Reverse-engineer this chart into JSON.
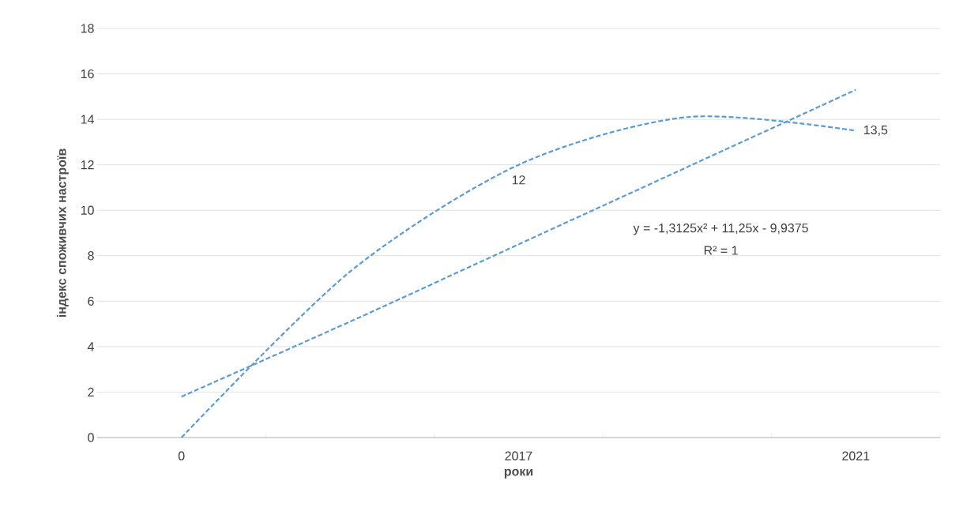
{
  "chart_data": {
    "type": "line",
    "xlabel": "роки",
    "ylabel": "індекс споживчих настроїв",
    "categories": [
      "0",
      null,
      "2017",
      null,
      "2021"
    ],
    "series": [
      {
        "color": "#5b9bd5",
        "values": [
          0,
          7.3,
          12,
          14.1,
          13.5
        ],
        "value_labels": [
          null,
          null,
          "12",
          null,
          "13,5"
        ]
      },
      {
        "color": "#5b9bd5",
        "values": [
          1.8,
          5.1,
          8.5,
          11.9,
          15.3
        ]
      }
    ],
    "annotations": [
      "y = -1,3125x² + 11,25x - 9,9375",
      "R² = 1"
    ],
    "ylim": [
      0,
      18
    ],
    "yticks": [
      0,
      2,
      4,
      6,
      8,
      10,
      12,
      14,
      16,
      18
    ],
    "grid": "y",
    "line_style": "dashed",
    "marker": "none"
  }
}
